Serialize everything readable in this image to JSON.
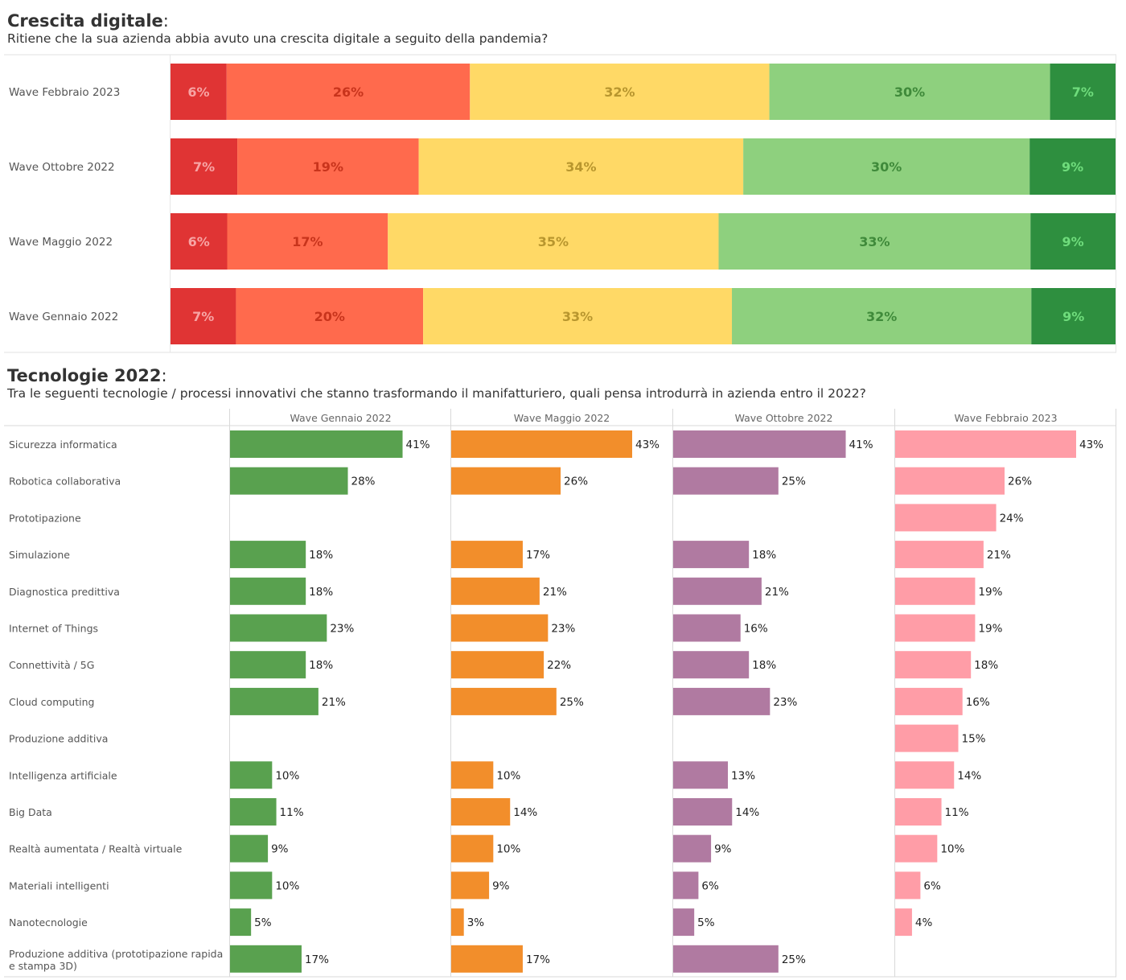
{
  "chart_data": [
    {
      "type": "bar",
      "stacked": true,
      "orientation": "horizontal",
      "title": "Crescita digitale",
      "subtitle": "Ritiene che la sua azienda abbia avuto una crescita digitale a seguito della pandemia?",
      "categories": [
        "Wave Febbraio 2023",
        "Wave Ottobre 2022",
        "Wave Maggio 2022",
        "Wave Gennaio 2022"
      ],
      "series": [
        {
          "name": "s1",
          "color": "#e03434",
          "label_color": "#f7a4a4",
          "values": [
            6,
            7,
            6,
            7
          ]
        },
        {
          "name": "s2",
          "color": "#ff6a4d",
          "label_color": "#c8341c",
          "values": [
            26,
            19,
            17,
            20
          ]
        },
        {
          "name": "s3",
          "color": "#ffd966",
          "label_color": "#b8962e",
          "values": [
            32,
            34,
            35,
            33
          ]
        },
        {
          "name": "s4",
          "color": "#8ed07e",
          "label_color": "#3f8a3a",
          "values": [
            30,
            30,
            33,
            32
          ]
        },
        {
          "name": "s5",
          "color": "#2e8f3f",
          "label_color": "#6fdc7c",
          "values": [
            7,
            9,
            9,
            9
          ]
        }
      ],
      "xlim": [
        0,
        100
      ]
    },
    {
      "type": "bar",
      "orientation": "horizontal",
      "small_multiples": true,
      "title": "Tecnologie 2022",
      "subtitle": "Tra le seguenti tecnologie / processi innovativi che stanno trasformando il manifatturiero, quali pensa introdurrà in azienda entro il 2022?",
      "categories": [
        "Sicurezza informatica",
        "Robotica collaborativa",
        "Prototipazione",
        "Simulazione",
        "Diagnostica predittiva",
        "Internet of Things",
        "Connettività / 5G",
        "Cloud computing",
        "Produzione additiva",
        "Intelligenza artificiale",
        "Big Data",
        "Realtà aumentata / Realtà virtuale",
        "Materiali intelligenti",
        "Nanotecnologie",
        "Produzione additiva (prototipazione rapida e stampa 3D)"
      ],
      "series": [
        {
          "name": "Wave Gennaio 2022",
          "color": "#59a14f",
          "values": [
            41,
            28,
            null,
            18,
            18,
            23,
            18,
            21,
            null,
            10,
            11,
            9,
            10,
            5,
            17
          ]
        },
        {
          "name": "Wave Maggio 2022",
          "color": "#f28e2b",
          "values": [
            43,
            26,
            null,
            17,
            21,
            23,
            22,
            25,
            null,
            10,
            14,
            10,
            9,
            3,
            17
          ]
        },
        {
          "name": "Wave Ottobre 2022",
          "color": "#b07aa1",
          "values": [
            41,
            25,
            null,
            18,
            21,
            16,
            18,
            23,
            null,
            13,
            14,
            9,
            6,
            5,
            25
          ]
        },
        {
          "name": "Wave Febbraio 2023",
          "color": "#ff9da7",
          "values": [
            43,
            26,
            24,
            21,
            19,
            19,
            18,
            16,
            15,
            14,
            11,
            10,
            6,
            4,
            null
          ]
        }
      ],
      "xlim": [
        0,
        48
      ]
    }
  ]
}
